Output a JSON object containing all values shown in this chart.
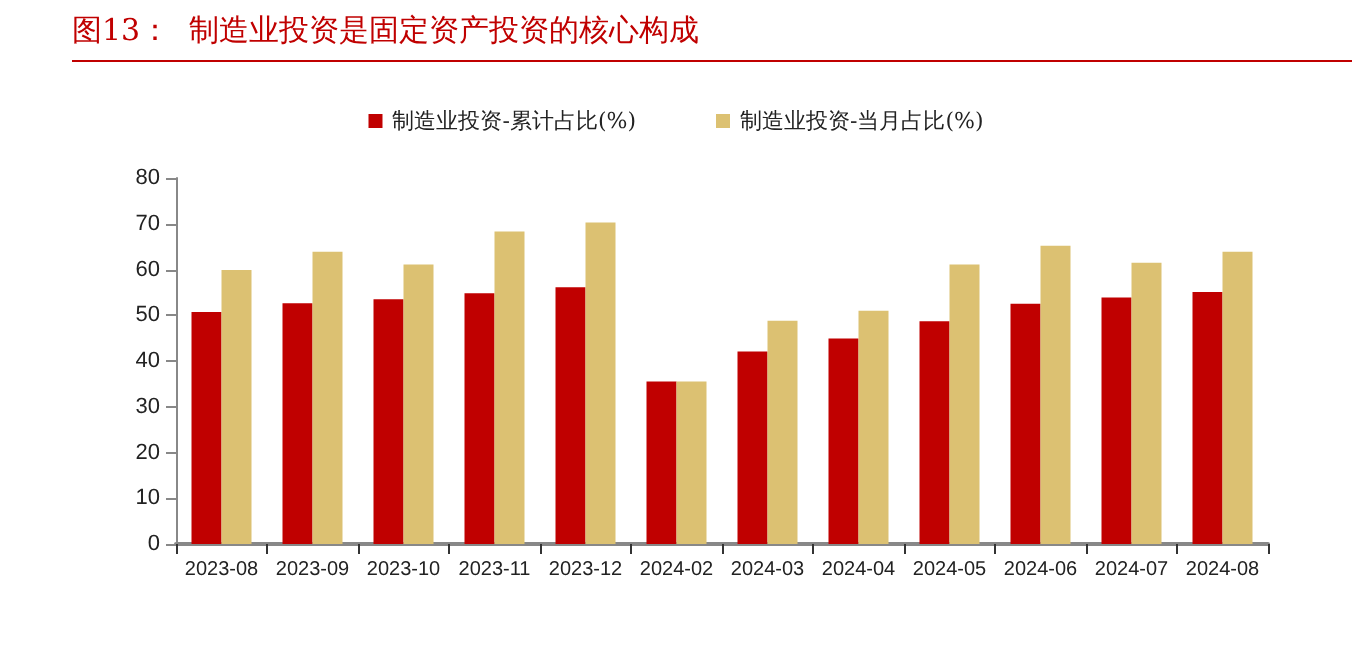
{
  "chart_data": {
    "type": "bar",
    "title": "图13：  制造业投资是固定资产投资的核心构成",
    "categories": [
      "2023-08",
      "2023-09",
      "2023-10",
      "2023-11",
      "2023-12",
      "2024-02",
      "2024-03",
      "2024-04",
      "2024-05",
      "2024-06",
      "2024-07",
      "2024-08"
    ],
    "series": [
      {
        "name": "制造业投资-累计占比(%)",
        "color": "#c00000",
        "values": [
          50.7,
          52.6,
          53.5,
          54.8,
          56.1,
          35.5,
          42.1,
          44.9,
          48.7,
          52.5,
          53.9,
          55.1
        ]
      },
      {
        "name": "制造业投资-当月占比(%)",
        "color": "#dcc172",
        "values": [
          59.9,
          63.9,
          61.1,
          68.3,
          70.3,
          35.5,
          48.8,
          51.0,
          61.1,
          65.2,
          61.5,
          63.9
        ]
      }
    ],
    "ylim": [
      0,
      80
    ],
    "yticks": [
      0,
      10,
      20,
      30,
      40,
      50,
      60,
      70,
      80
    ],
    "grid": false,
    "legend": "top"
  }
}
